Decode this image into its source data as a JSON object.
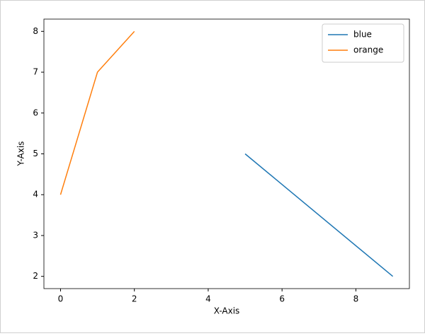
{
  "chart_data": {
    "type": "line",
    "x_label": "X-Axis",
    "y_label": "Y-Axis",
    "series": [
      {
        "name": "blue",
        "color": "#1f77b4",
        "x": [
          5,
          9
        ],
        "values": [
          5,
          2
        ]
      },
      {
        "name": "orange",
        "color": "#ff7f0e",
        "x": [
          0,
          1,
          2
        ],
        "values": [
          4,
          7,
          8
        ]
      }
    ],
    "xlim": [
      -0.45,
      9.45
    ],
    "xticks": [
      0,
      2,
      4,
      6,
      8
    ],
    "ylim": [
      1.7,
      8.3
    ],
    "yticks": [
      2,
      3,
      4,
      5,
      6,
      7,
      8
    ],
    "grid": false,
    "legend": "upper-right"
  }
}
